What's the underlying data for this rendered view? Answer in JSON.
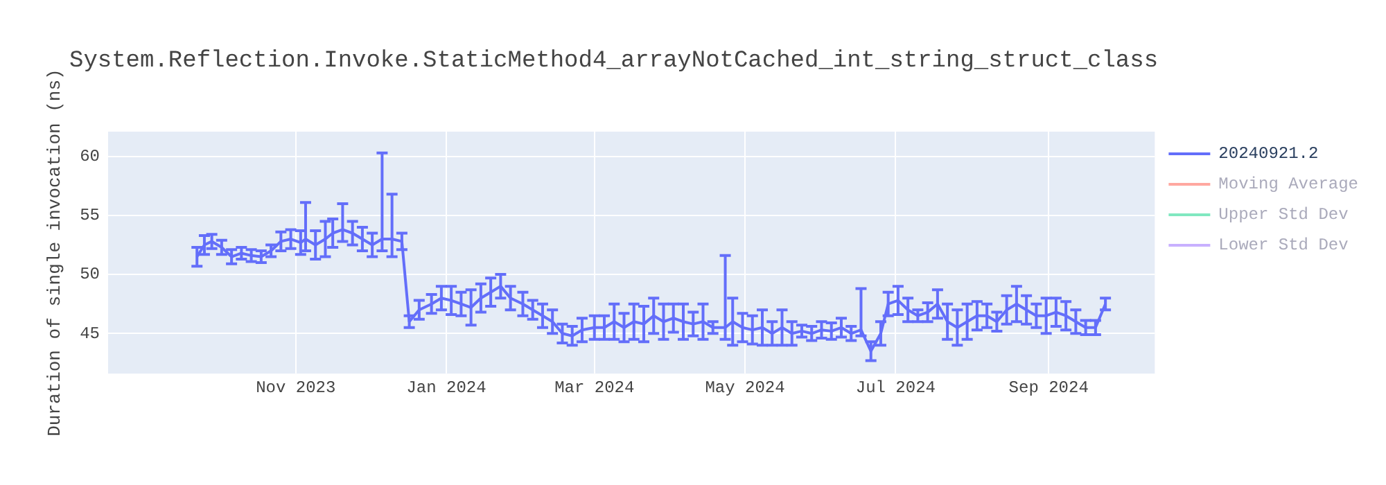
{
  "chart_data": {
    "type": "line",
    "title": "System.Reflection.Invoke.StaticMethod4_arrayNotCached_int_string_struct_class",
    "ylabel": "Duration of single invocation (ns)",
    "xlim": [
      "2023-08-17",
      "2024-10-14"
    ],
    "xticks": [
      {
        "value": "2023-11-01",
        "label": "Nov 2023"
      },
      {
        "value": "2024-01-01",
        "label": "Jan 2024"
      },
      {
        "value": "2024-03-01",
        "label": "Mar 2024"
      },
      {
        "value": "2024-05-01",
        "label": "May 2024"
      },
      {
        "value": "2024-07-01",
        "label": "Jul 2024"
      },
      {
        "value": "2024-09-01",
        "label": "Sep 2024"
      }
    ],
    "ylim": [
      41.6,
      62.1
    ],
    "yticks": [
      45,
      50,
      55,
      60
    ],
    "grid": true,
    "legend": "top right",
    "marker": "none",
    "line_style": "solid",
    "series": [
      {
        "name": "20240921.2",
        "color": "#636efa",
        "x": [
          "2023-09-22",
          "2023-09-25",
          "2023-09-28",
          "2023-10-02",
          "2023-10-06",
          "2023-10-10",
          "2023-10-14",
          "2023-10-18",
          "2023-10-22",
          "2023-10-26",
          "2023-10-30",
          "2023-11-03",
          "2023-11-05",
          "2023-11-09",
          "2023-11-13",
          "2023-11-16",
          "2023-11-20",
          "2023-11-24",
          "2023-11-28",
          "2023-12-02",
          "2023-12-06",
          "2023-12-10",
          "2023-12-14",
          "2023-12-17",
          "2023-12-21",
          "2023-12-26",
          "2023-12-30",
          "2024-01-03",
          "2024-01-07",
          "2024-01-11",
          "2024-01-15",
          "2024-01-19",
          "2024-01-23",
          "2024-01-27",
          "2024-02-01",
          "2024-02-05",
          "2024-02-09",
          "2024-02-13",
          "2024-02-17",
          "2024-02-21",
          "2024-02-25",
          "2024-03-01",
          "2024-03-05",
          "2024-03-09",
          "2024-03-13",
          "2024-03-17",
          "2024-03-21",
          "2024-03-25",
          "2024-03-29",
          "2024-04-02",
          "2024-04-06",
          "2024-04-10",
          "2024-04-14",
          "2024-04-18",
          "2024-04-23",
          "2024-04-26",
          "2024-04-30",
          "2024-05-04",
          "2024-05-08",
          "2024-05-12",
          "2024-05-16",
          "2024-05-20",
          "2024-05-24",
          "2024-05-28",
          "2024-06-01",
          "2024-06-05",
          "2024-06-09",
          "2024-06-13",
          "2024-06-17",
          "2024-06-21",
          "2024-06-25",
          "2024-06-28",
          "2024-07-02",
          "2024-07-06",
          "2024-07-10",
          "2024-07-14",
          "2024-07-18",
          "2024-07-22",
          "2024-07-26",
          "2024-07-30",
          "2024-08-03",
          "2024-08-07",
          "2024-08-11",
          "2024-08-15",
          "2024-08-19",
          "2024-08-23",
          "2024-08-27",
          "2024-08-31",
          "2024-09-04",
          "2024-09-08",
          "2024-09-12",
          "2024-09-16",
          "2024-09-20",
          "2024-09-24"
        ],
        "values": [
          51.5,
          52.5,
          52.8,
          52.3,
          51.5,
          51.8,
          51.6,
          51.5,
          52.0,
          52.8,
          53.0,
          52.7,
          53.0,
          52.5,
          53.0,
          53.5,
          53.8,
          53.5,
          53.0,
          52.5,
          53.0,
          53.0,
          52.8,
          46.0,
          47.0,
          47.5,
          48.0,
          47.8,
          47.5,
          47.2,
          48.0,
          48.5,
          49.0,
          48.0,
          47.5,
          47.0,
          46.5,
          46.0,
          45.0,
          44.8,
          45.3,
          45.5,
          45.5,
          46.0,
          45.5,
          46.0,
          45.8,
          46.5,
          46.0,
          46.3,
          46.0,
          45.8,
          46.0,
          45.5,
          45.5,
          46.0,
          45.5,
          45.3,
          45.5,
          45.0,
          45.5,
          45.0,
          45.2,
          45.0,
          45.3,
          45.2,
          45.5,
          45.0,
          45.3,
          43.5,
          45.0,
          47.5,
          47.8,
          47.0,
          46.5,
          46.8,
          47.5,
          46.0,
          45.5,
          46.0,
          46.5,
          46.5,
          46.0,
          47.0,
          47.5,
          47.0,
          46.5,
          46.5,
          46.8,
          46.5,
          46.0,
          45.5,
          45.5,
          47.5
        ],
        "errors": [
          0.8,
          0.8,
          0.6,
          0.6,
          0.6,
          0.5,
          0.5,
          0.5,
          0.5,
          0.8,
          0.8,
          1.0,
          [
            52,
            56.1
          ],
          1.2,
          1.5,
          1.2,
          [
            52.8,
            56
          ],
          1.0,
          1.0,
          1.0,
          [
            52,
            60.3
          ],
          [
            51.5,
            56.8
          ],
          0.7,
          0.5,
          0.8,
          0.8,
          1.0,
          1.2,
          1.0,
          1.5,
          1.2,
          1.2,
          1.0,
          1.0,
          1.0,
          0.8,
          1.0,
          1.0,
          0.8,
          0.8,
          1.0,
          1.0,
          1.0,
          1.5,
          1.2,
          1.5,
          1.5,
          1.5,
          1.5,
          1.2,
          1.5,
          1.0,
          1.5,
          0.5,
          [
            44.5,
            51.6
          ],
          2.0,
          1.2,
          1.2,
          1.5,
          1.0,
          1.5,
          1.0,
          0.5,
          0.6,
          0.7,
          0.7,
          0.8,
          0.6,
          [
            44.8,
            48.8
          ],
          0.8,
          1.0,
          1.0,
          1.2,
          1.0,
          0.5,
          0.8,
          1.2,
          1.5,
          1.5,
          1.5,
          1.2,
          1.0,
          0.8,
          1.2,
          1.5,
          1.2,
          1.0,
          1.5,
          1.2,
          1.2,
          1.0,
          0.6,
          0.6,
          0.5
        ]
      },
      {
        "name": "Moving Average",
        "color": "#ffa8a0"
      },
      {
        "name": "Upper Std Dev",
        "color": "#80e8c0"
      },
      {
        "name": "Lower Std Dev",
        "color": "#c8b0ff"
      }
    ]
  }
}
